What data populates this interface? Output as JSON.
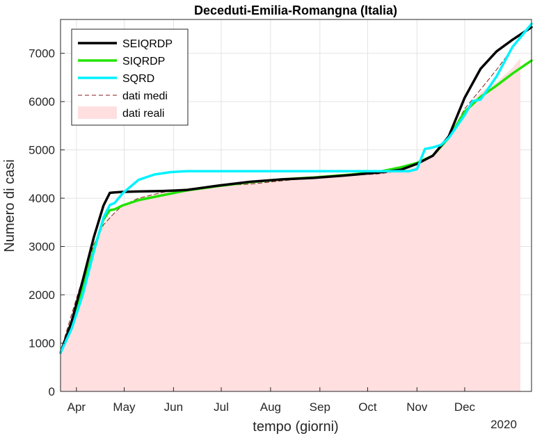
{
  "chart_data": {
    "type": "line",
    "title": "Deceduti-Emilia-Romangna (Italia)",
    "xlabel": "tempo (giorni)",
    "ylabel": "Numero di casi",
    "year_label": "2020",
    "x_tick_labels": [
      "Apr",
      "May",
      "Jun",
      "Jul",
      "Aug",
      "Sep",
      "Oct",
      "Nov",
      "Dec"
    ],
    "x_tick_days": [
      1,
      31,
      62,
      92,
      123,
      154,
      184,
      215,
      245
    ],
    "xlim_days": [
      -9,
      287
    ],
    "ylim": [
      0,
      7700
    ],
    "y_ticks": [
      0,
      1000,
      2000,
      3000,
      4000,
      5000,
      6000,
      7000
    ],
    "grid": true,
    "legend_location": "top-left",
    "series": [
      {
        "name": "SEIQRDP",
        "color": "#000000",
        "style": "solid",
        "x": [
          -9,
          -2,
          5,
          12,
          18,
          22,
          25,
          30,
          40,
          55,
          70,
          90,
          110,
          130,
          150,
          170,
          190,
          205,
          215,
          225,
          235,
          245,
          255,
          265,
          275,
          287
        ],
        "y": [
          800,
          1450,
          2300,
          3200,
          3850,
          4110,
          4120,
          4130,
          4140,
          4150,
          4170,
          4260,
          4340,
          4390,
          4420,
          4470,
          4530,
          4590,
          4710,
          4880,
          5280,
          6080,
          6680,
          7040,
          7280,
          7540
        ]
      },
      {
        "name": "SIQRDP",
        "color": "#22e300",
        "style": "solid",
        "x": [
          -9,
          -2,
          5,
          12,
          18,
          22,
          25,
          30,
          40,
          55,
          70,
          90,
          110,
          130,
          150,
          170,
          190,
          205,
          215,
          225,
          235,
          245,
          255,
          265,
          275,
          287
        ],
        "y": [
          800,
          1380,
          2150,
          2950,
          3560,
          3750,
          3770,
          3850,
          3960,
          4060,
          4160,
          4250,
          4330,
          4390,
          4430,
          4480,
          4540,
          4640,
          4730,
          4880,
          5250,
          5790,
          6100,
          6330,
          6580,
          6850
        ]
      },
      {
        "name": "SQRD",
        "color": "#00f2ff",
        "style": "solid",
        "x": [
          -9,
          -2,
          5,
          12,
          18,
          22,
          25,
          30,
          40,
          50,
          60,
          70,
          90,
          110,
          130,
          150,
          170,
          190,
          200,
          210,
          215,
          220,
          225,
          230,
          235,
          245,
          250,
          255,
          265,
          275,
          287
        ],
        "y": [
          800,
          1300,
          2000,
          2900,
          3600,
          3860,
          3900,
          4100,
          4380,
          4490,
          4540,
          4560,
          4560,
          4560,
          4560,
          4560,
          4560,
          4560,
          4560,
          4560,
          4600,
          5020,
          5050,
          5100,
          5250,
          5720,
          6010,
          6040,
          6520,
          7130,
          7610
        ]
      },
      {
        "name": "dati medi",
        "color": "#8a1a1a",
        "style": "dashed",
        "x": [
          -9,
          -2,
          5,
          12,
          18,
          25,
          30,
          40,
          55,
          70,
          90,
          110,
          130,
          150,
          170,
          190,
          205,
          215,
          225,
          235,
          245,
          255,
          265,
          275
        ],
        "y": [
          830,
          1600,
          2350,
          3050,
          3450,
          3700,
          3850,
          4000,
          4120,
          4190,
          4260,
          4290,
          4360,
          4420,
          4470,
          4500,
          4570,
          4700,
          4880,
          5250,
          5850,
          6250,
          6660,
          7100
        ]
      }
    ],
    "area_series": {
      "name": "dati reali",
      "color": "#ffdfe0",
      "x": [
        -9,
        -2,
        5,
        12,
        18,
        22,
        25,
        30,
        40,
        55,
        70,
        90,
        110,
        130,
        150,
        170,
        190,
        205,
        215,
        225,
        235,
        245,
        255,
        265,
        275,
        280
      ],
      "y": [
        800,
        1450,
        2250,
        3000,
        3450,
        3620,
        3700,
        3850,
        4000,
        4110,
        4180,
        4250,
        4290,
        4360,
        4420,
        4470,
        4500,
        4570,
        4660,
        4880,
        5250,
        5800,
        6200,
        6400,
        6700,
        6900
      ]
    }
  }
}
